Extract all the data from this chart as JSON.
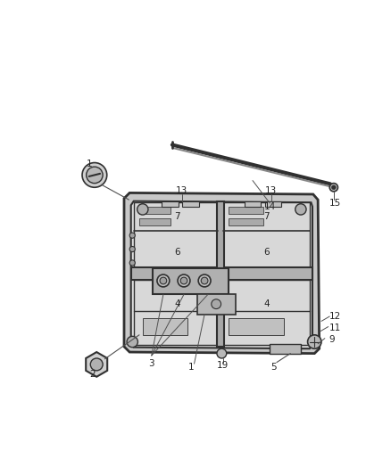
{
  "bg_color": "#ffffff",
  "lc": "#404040",
  "lc2": "#606060",
  "fig_width": 4.38,
  "fig_height": 5.33,
  "panel_face": "#e0e0e0",
  "panel_inner": "#d0d0d0",
  "frame_color": "#303030",
  "hinge_face": "#b8b8b8",
  "screw_face": "#c8c8c8",
  "slot_face": "#aaaaaa",
  "rod_color": "#303030",
  "label_color": "#222222",
  "label_fontsize": 7.5
}
